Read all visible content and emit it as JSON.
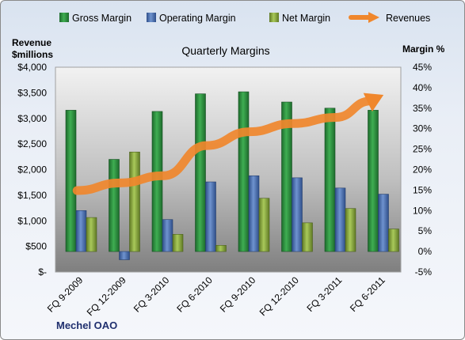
{
  "chart_data": {
    "type": "bar",
    "title": "Quarterly Margins",
    "company": "Mechel OAO",
    "left_axis_title_line1": "Revenue",
    "left_axis_title_line2": "$millions",
    "right_axis_title": "Margin %",
    "categories": [
      "FQ 9-2009",
      "FQ 12-2009",
      "FQ 3-2010",
      "FQ 6-2010",
      "FQ 9-2010",
      "FQ 12-2010",
      "FQ 3-2011",
      "FQ 6-2011"
    ],
    "left_ticks": [
      "$-",
      "$500",
      "$1,000",
      "$1,500",
      "$2,000",
      "$2,500",
      "$3,000",
      "$3,500",
      "$4,000"
    ],
    "right_ticks": [
      "-5%",
      "0%",
      "5%",
      "10%",
      "15%",
      "20%",
      "25%",
      "30%",
      "35%",
      "40%",
      "45%"
    ],
    "left_ylim": [
      0,
      4000
    ],
    "right_ylim": [
      -5,
      45
    ],
    "series": [
      {
        "name": "Gross Margin",
        "axis": "right",
        "kind": "bar",
        "color": "#2e8b3e",
        "values": [
          34.5,
          22.5,
          34.2,
          38.5,
          39.0,
          36.5,
          35.0,
          34.5
        ]
      },
      {
        "name": "Operating Margin",
        "axis": "right",
        "kind": "bar",
        "color": "#4f72b0",
        "values": [
          10.0,
          -2.0,
          7.8,
          17.0,
          18.5,
          18.0,
          15.5,
          14.0
        ]
      },
      {
        "name": "Net Margin",
        "axis": "right",
        "kind": "bar",
        "color": "#8aac3e",
        "values": [
          8.3,
          24.3,
          4.2,
          1.5,
          13.0,
          7.0,
          10.5,
          5.5
        ]
      },
      {
        "name": "Revenues",
        "axis": "left",
        "kind": "arrow-line",
        "color": "#f0872c",
        "values": [
          1590,
          1740,
          1880,
          2470,
          2740,
          2900,
          3020,
          3420
        ]
      }
    ],
    "grid": false,
    "legend_position": "top"
  }
}
